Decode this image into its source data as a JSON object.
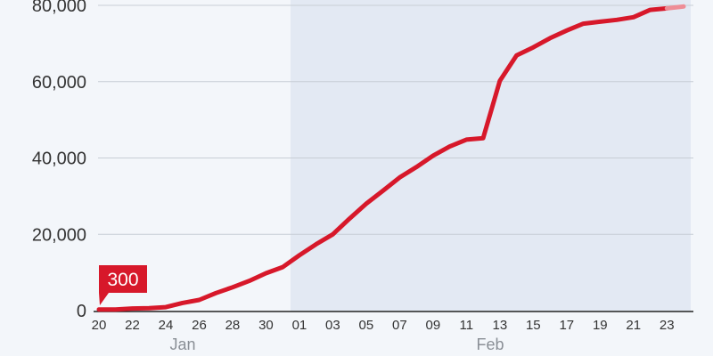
{
  "chart_data": {
    "type": "line",
    "x": [
      "2020-01-20",
      "2020-01-21",
      "2020-01-22",
      "2020-01-23",
      "2020-01-24",
      "2020-01-25",
      "2020-01-26",
      "2020-01-27",
      "2020-01-28",
      "2020-01-29",
      "2020-01-30",
      "2020-01-31",
      "2020-02-01",
      "2020-02-02",
      "2020-02-03",
      "2020-02-04",
      "2020-02-05",
      "2020-02-06",
      "2020-02-07",
      "2020-02-08",
      "2020-02-09",
      "2020-02-10",
      "2020-02-11",
      "2020-02-12",
      "2020-02-13",
      "2020-02-14",
      "2020-02-15",
      "2020-02-16",
      "2020-02-17",
      "2020-02-18",
      "2020-02-19",
      "2020-02-20",
      "2020-02-21",
      "2020-02-22",
      "2020-02-23",
      "2020-02-24"
    ],
    "series": [
      {
        "values": [
          300,
          300,
          550,
          650,
          900,
          2000,
          2800,
          4600,
          6100,
          7800,
          9800,
          11400,
          14500,
          17400,
          20000,
          24100,
          28000,
          31400,
          34900,
          37600,
          40600,
          43000,
          44800,
          45200,
          60200,
          66900,
          69000,
          71400,
          73400,
          75200,
          75700,
          76200,
          76900,
          78800,
          79200,
          79700
        ],
        "color": "#d7182a"
      }
    ],
    "yticks": [
      "0",
      "20,000",
      "40,000",
      "60,000",
      "80,000"
    ],
    "ylim": [
      0,
      80000
    ],
    "xtick_labels": [
      "20",
      "22",
      "24",
      "26",
      "28",
      "30",
      "01",
      "03",
      "05",
      "07",
      "09",
      "11",
      "13",
      "15",
      "17",
      "19",
      "21",
      "23"
    ],
    "month_labels": [
      "Jan",
      "Feb"
    ],
    "callout": "300",
    "grid": true
  }
}
